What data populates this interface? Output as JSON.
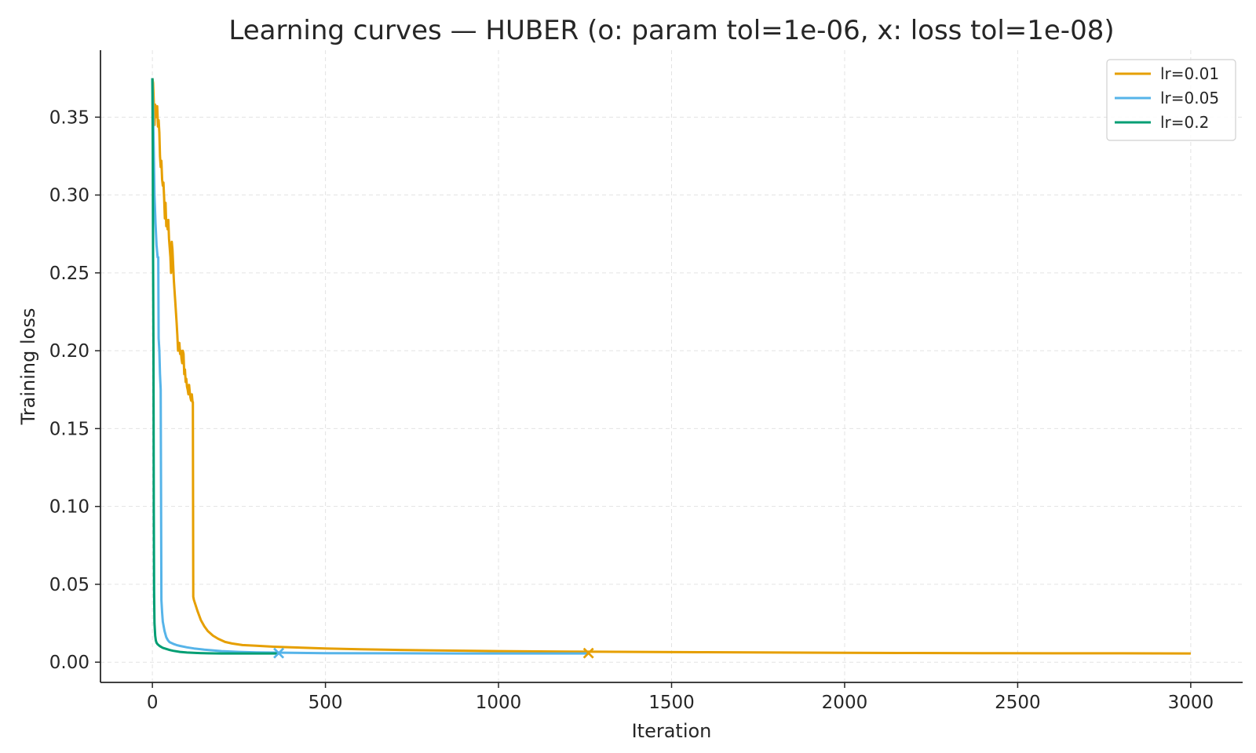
{
  "chart_data": {
    "type": "line",
    "title": "Learning curves — HUBER  (o: param tol=1e-06, x: loss tol=1e-08)",
    "xlabel": "Iteration",
    "ylabel": "Training loss",
    "xlim": [
      -150,
      3150
    ],
    "ylim": [
      -0.013,
      0.393
    ],
    "xticks": [
      0,
      500,
      1000,
      1500,
      2000,
      2500,
      3000
    ],
    "xtick_labels": [
      "0",
      "500",
      "1000",
      "1500",
      "2000",
      "2500",
      "3000"
    ],
    "yticks": [
      0,
      0.05,
      0.1,
      0.15,
      0.2,
      0.25,
      0.3,
      0.35
    ],
    "ytick_labels": [
      "0.00",
      "0.05",
      "0.10",
      "0.15",
      "0.20",
      "0.25",
      "0.30",
      "0.35"
    ],
    "grid": true,
    "legend_position": "top-right",
    "series": [
      {
        "name": "lr=0.01",
        "color": "#E69F00",
        "x": [
          0,
          2,
          4,
          6,
          8,
          10,
          12,
          14,
          16,
          18,
          20,
          22,
          24,
          26,
          28,
          30,
          32,
          34,
          36,
          38,
          40,
          42,
          44,
          46,
          48,
          50,
          52,
          54,
          56,
          58,
          60,
          62,
          64,
          66,
          68,
          70,
          72,
          74,
          76,
          78,
          80,
          82,
          84,
          86,
          88,
          90,
          92,
          94,
          96,
          98,
          100,
          102,
          104,
          106,
          108,
          110,
          112,
          114,
          116,
          117,
          118,
          120,
          130,
          140,
          150,
          160,
          175,
          190,
          210,
          230,
          260,
          300,
          350,
          400,
          500,
          600,
          700,
          800,
          1000,
          1200,
          1400,
          1600,
          1800,
          2000,
          2200,
          2400,
          2600,
          2800,
          3000
        ],
        "y": [
          0.375,
          0.372,
          0.36,
          0.345,
          0.358,
          0.352,
          0.35,
          0.357,
          0.344,
          0.348,
          0.34,
          0.325,
          0.318,
          0.322,
          0.31,
          0.306,
          0.308,
          0.298,
          0.285,
          0.295,
          0.28,
          0.283,
          0.278,
          0.284,
          0.272,
          0.266,
          0.26,
          0.25,
          0.27,
          0.265,
          0.255,
          0.245,
          0.238,
          0.232,
          0.225,
          0.218,
          0.21,
          0.2,
          0.203,
          0.205,
          0.198,
          0.2,
          0.195,
          0.192,
          0.2,
          0.198,
          0.185,
          0.188,
          0.18,
          0.182,
          0.177,
          0.175,
          0.172,
          0.178,
          0.173,
          0.17,
          0.168,
          0.172,
          0.167,
          0.167,
          0.042,
          0.04,
          0.033,
          0.027,
          0.023,
          0.02,
          0.017,
          0.015,
          0.013,
          0.012,
          0.011,
          0.0105,
          0.0099,
          0.0095,
          0.0088,
          0.0083,
          0.0079,
          0.0076,
          0.0071,
          0.0068,
          0.0066,
          0.0064,
          0.0062,
          0.006,
          0.0059,
          0.0058,
          0.0057,
          0.0057,
          0.0056
        ],
        "marker": {
          "shape": "x",
          "x": 1260,
          "y": 0.0058
        }
      },
      {
        "name": "lr=0.05",
        "color": "#56B4E9",
        "x": [
          0,
          3,
          6,
          9,
          12,
          15,
          17,
          18,
          20,
          22,
          24,
          26,
          28,
          30,
          35,
          40,
          45,
          50,
          60,
          70,
          80,
          100,
          120,
          150,
          200,
          250,
          300,
          400,
          500,
          700,
          900,
          1100,
          1260
        ],
        "y": [
          0.375,
          0.34,
          0.3,
          0.282,
          0.268,
          0.26,
          0.26,
          0.208,
          0.2,
          0.185,
          0.175,
          0.04,
          0.032,
          0.026,
          0.02,
          0.016,
          0.014,
          0.0128,
          0.0118,
          0.011,
          0.0104,
          0.0095,
          0.0088,
          0.008,
          0.0071,
          0.0066,
          0.0063,
          0.006,
          0.0058,
          0.0057,
          0.0056,
          0.0056,
          0.0056
        ],
        "marker": {
          "shape": "x",
          "x": 365,
          "y": 0.0058
        }
      },
      {
        "name": "lr=0.2",
        "color": "#009E73",
        "x": [
          0,
          1,
          2,
          3,
          4,
          5,
          6,
          8,
          10,
          12,
          15,
          20,
          25,
          30,
          40,
          50,
          60,
          80,
          100,
          130,
          160,
          200,
          250,
          300,
          365
        ],
        "y": [
          0.375,
          0.33,
          0.26,
          0.2,
          0.1,
          0.045,
          0.025,
          0.017,
          0.014,
          0.0125,
          0.0115,
          0.0105,
          0.0098,
          0.0092,
          0.0085,
          0.0078,
          0.0073,
          0.0066,
          0.0062,
          0.0059,
          0.0057,
          0.0056,
          0.0056,
          0.0056,
          0.0056
        ]
      }
    ]
  }
}
